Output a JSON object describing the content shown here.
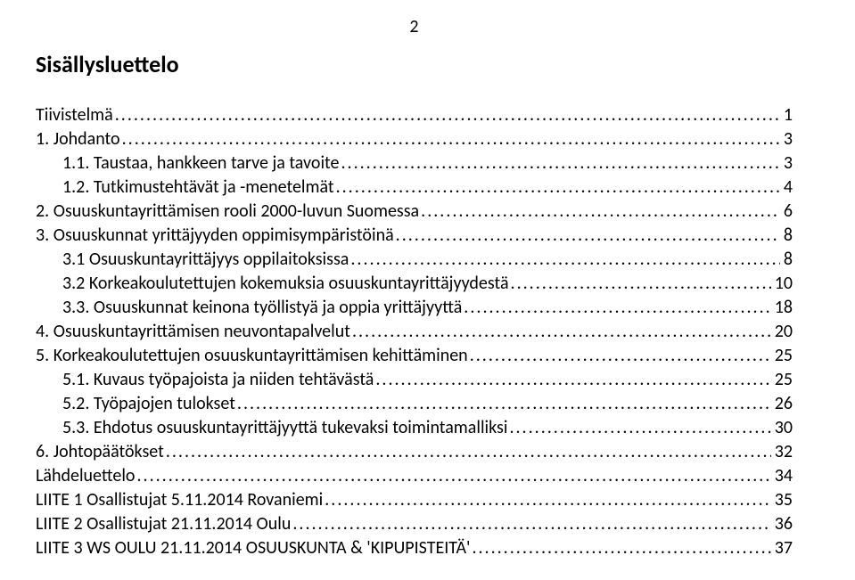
{
  "page_number": "2",
  "title": "Sisällysluettelo",
  "font_family": "Calibri",
  "colors": {
    "text": "#000000",
    "background": "#ffffff"
  },
  "font_sizes": {
    "body": 20,
    "title": 26
  },
  "entries": [
    {
      "label": "Tiivistelmä",
      "page": "1",
      "indent": 0
    },
    {
      "label": "1.    Johdanto",
      "page": "3",
      "indent": 0
    },
    {
      "label": "1.1.  Taustaa, hankkeen tarve ja tavoite",
      "page": "3",
      "indent": 1
    },
    {
      "label": "1.2.  Tutkimustehtävät ja -menetelmät",
      "page": "4",
      "indent": 1
    },
    {
      "label": "2.    Osuuskuntayrittämisen rooli 2000-luvun Suomessa",
      "page": "6",
      "indent": 0
    },
    {
      "label": "3.    Osuuskunnat yrittäjyyden oppimisympäristöinä",
      "page": "8",
      "indent": 0
    },
    {
      "label": "3.1 Osuuskuntayrittäjyys oppilaitoksissa",
      "page": "8",
      "indent": 1
    },
    {
      "label": "3.2 Korkeakoulutettujen kokemuksia osuuskuntayrittäjyydestä",
      "page": "10",
      "indent": 1
    },
    {
      "label": "3.3. Osuuskunnat keinona työllistyä ja oppia yrittäjyyttä",
      "page": "18",
      "indent": 1
    },
    {
      "label": "4.    Osuuskuntayrittämisen neuvontapalvelut",
      "page": "20",
      "indent": 0
    },
    {
      "label": "5.    Korkeakoulutettujen osuuskuntayrittämisen kehittäminen",
      "page": "25",
      "indent": 0
    },
    {
      "label": "5.1. Kuvaus työpajoista ja niiden tehtävästä",
      "page": "25",
      "indent": 1
    },
    {
      "label": "5.2. Työpajojen tulokset",
      "page": "26",
      "indent": 1
    },
    {
      "label": "5.3. Ehdotus osuuskuntayrittäjyyttä tukevaksi toimintamalliksi",
      "page": "30",
      "indent": 1
    },
    {
      "label": "6.    Johtopäätökset",
      "page": "32",
      "indent": 0
    },
    {
      "label": "Lähdeluettelo",
      "page": "34",
      "indent": 0
    },
    {
      "label": "LIITE 1 Osallistujat  5.11.2014 Rovaniemi",
      "page": "35",
      "indent": 0
    },
    {
      "label": "LIITE 2 Osallistujat 21.11.2014 Oulu",
      "page": "36",
      "indent": 0
    },
    {
      "label": "LIITE 3 WS OULU 21.11.2014 OSUUSKUNTA & 'KIPUPISTEITÄ'",
      "page": "37",
      "indent": 0
    }
  ]
}
